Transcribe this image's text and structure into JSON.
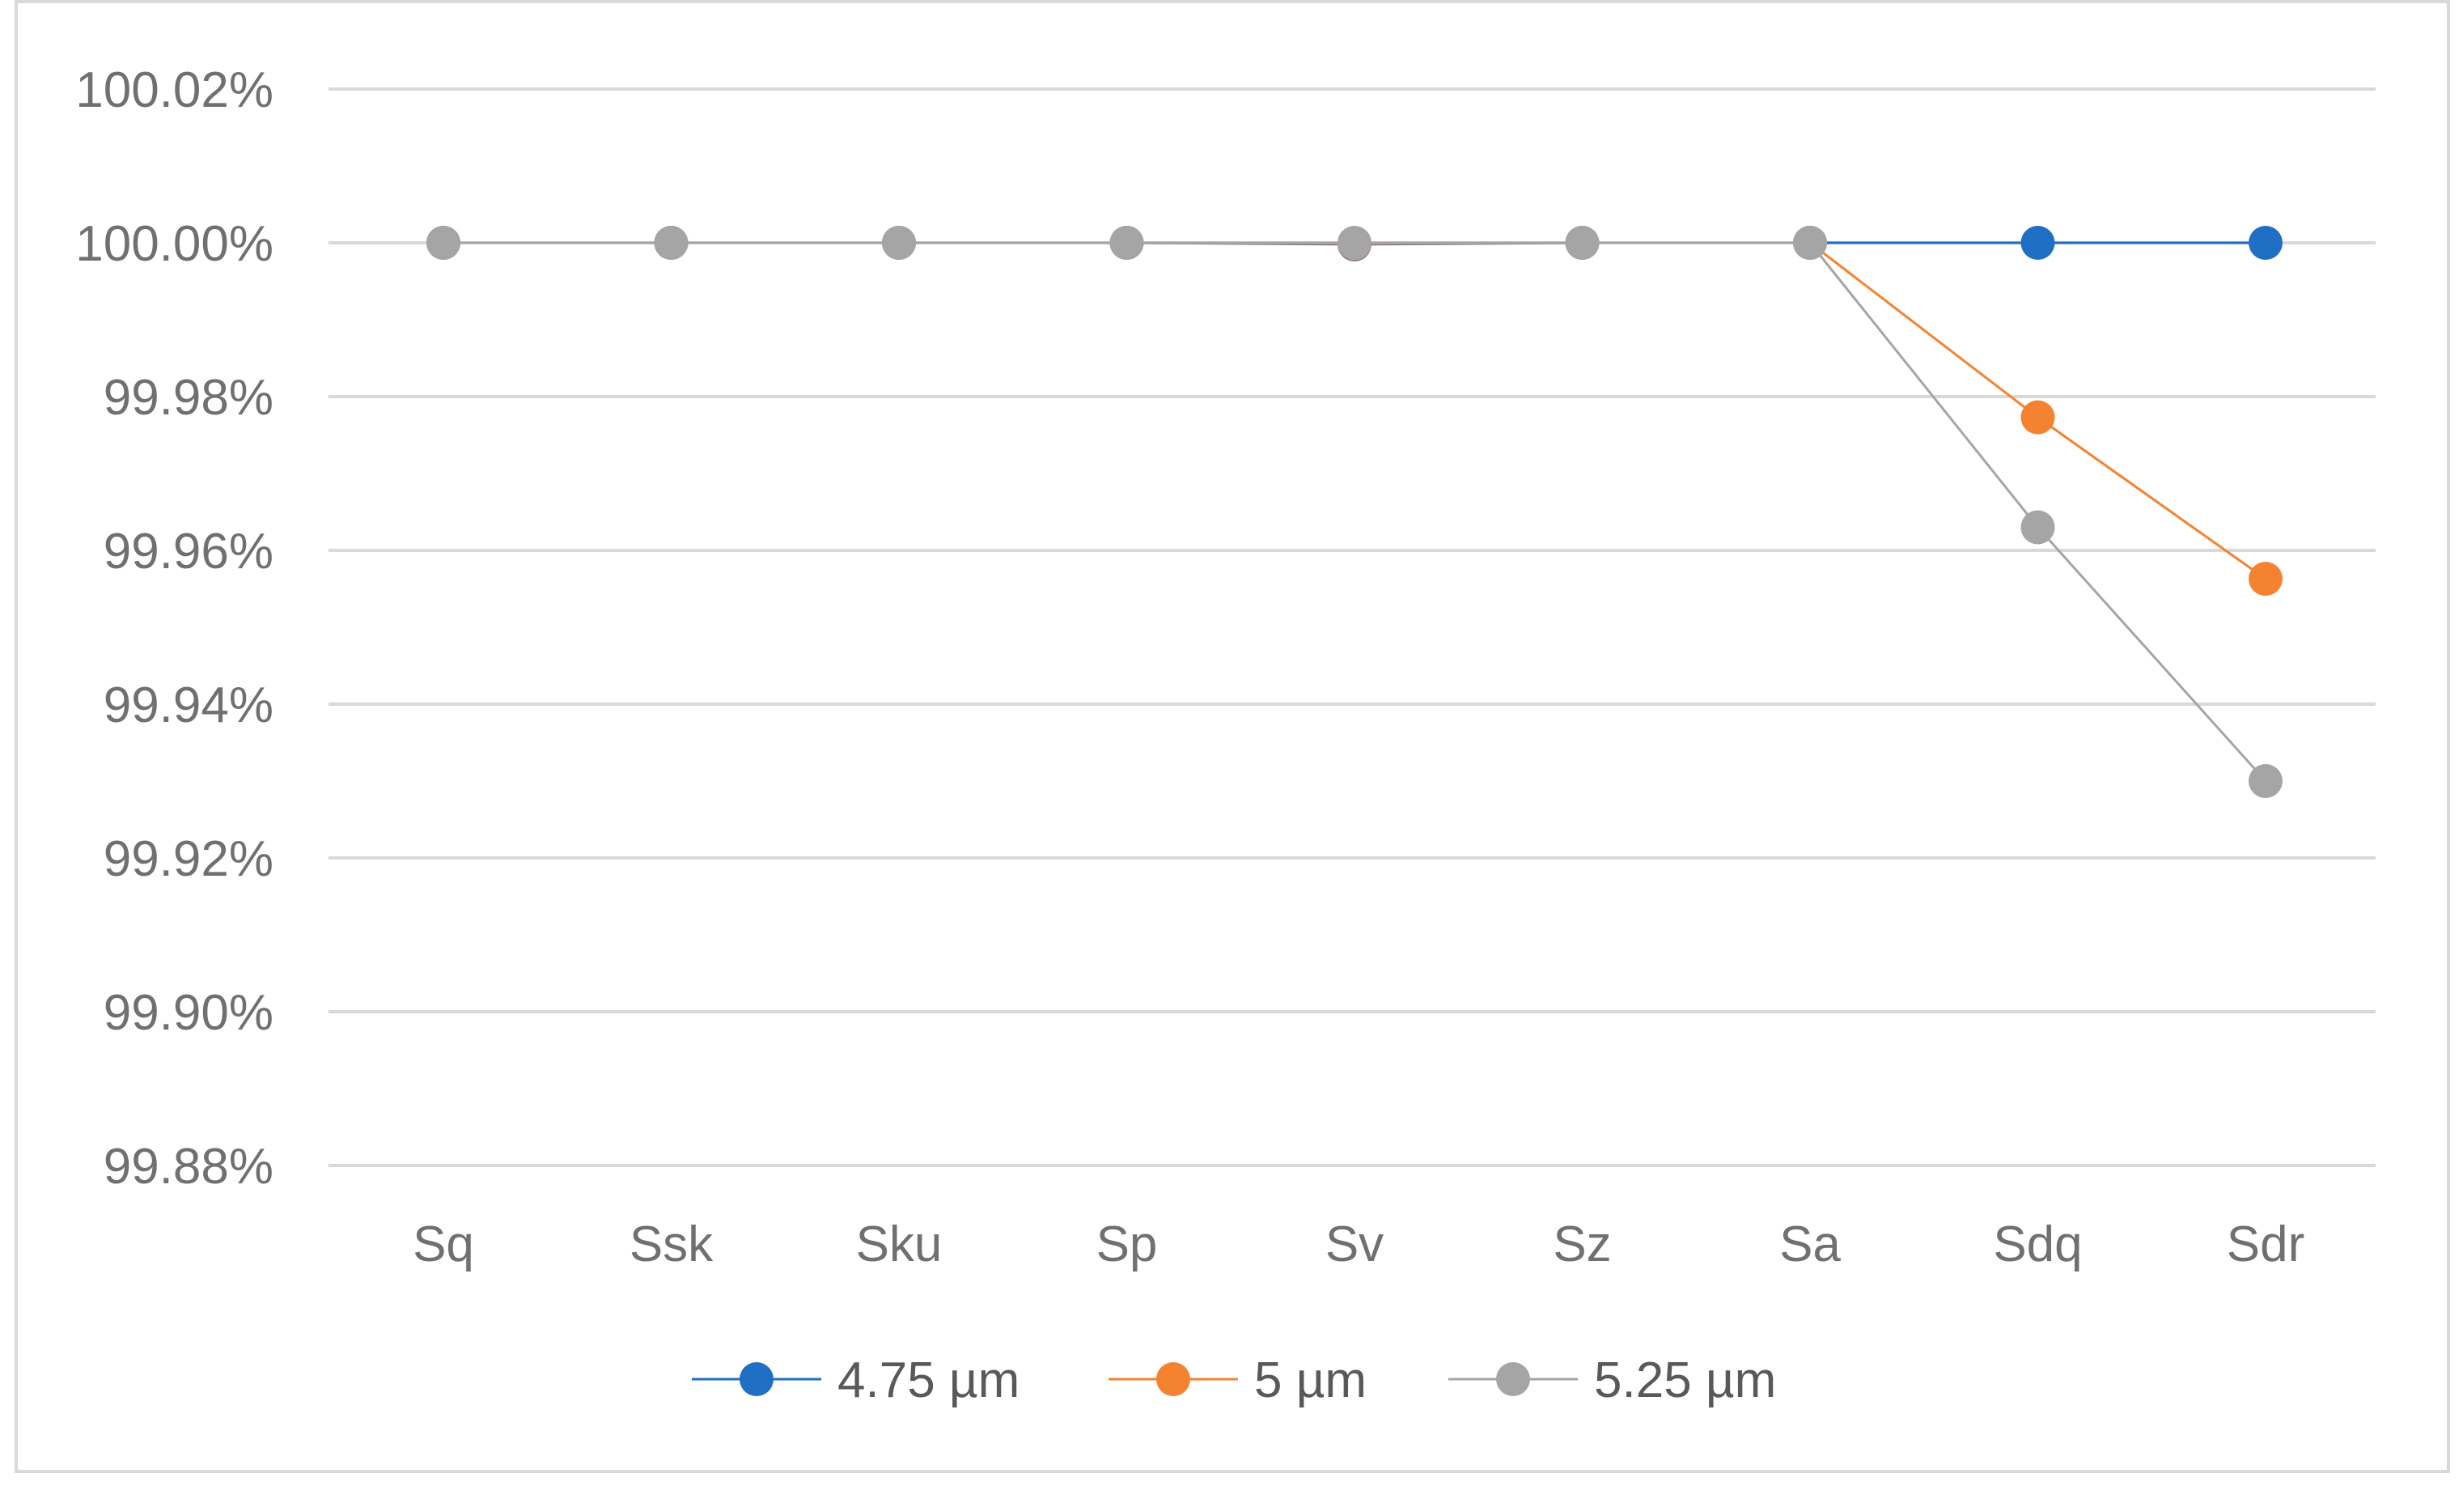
{
  "chart_data": {
    "type": "line",
    "title": "",
    "xlabel": "",
    "ylabel": "",
    "categories": [
      "Sq",
      "Ssk",
      "Sku",
      "Sp",
      "Sv",
      "Sz",
      "Sa",
      "Sdq",
      "Sdr"
    ],
    "ylim": [
      99.88,
      100.02
    ],
    "yticks": [
      100.02,
      100.0,
      99.98,
      99.96,
      99.94,
      99.92,
      99.9,
      99.88
    ],
    "ytick_labels": [
      "100.02%",
      "100.00%",
      "99.98%",
      "99.96%",
      "99.94%",
      "99.92%",
      "99.90%",
      "99.88%"
    ],
    "grid": "horizontal",
    "legend_position": "bottom",
    "series": [
      {
        "name": "4.75 µm",
        "color": "#1f6fc4",
        "values": [
          100.0,
          100.0,
          100.0,
          100.0,
          99.9998,
          100.0,
          100.0,
          100.0,
          100.0
        ]
      },
      {
        "name": "5 µm",
        "color": "#f58231",
        "values": [
          100.0,
          100.0,
          100.0,
          100.0,
          99.9999,
          100.0,
          100.0,
          99.9773,
          99.9563
        ]
      },
      {
        "name": "5.25 µm",
        "color": "#a5a5a5",
        "values": [
          100.0,
          100.0,
          100.0,
          100.0,
          100.0,
          100.0,
          100.0,
          99.963,
          99.93
        ]
      }
    ]
  }
}
